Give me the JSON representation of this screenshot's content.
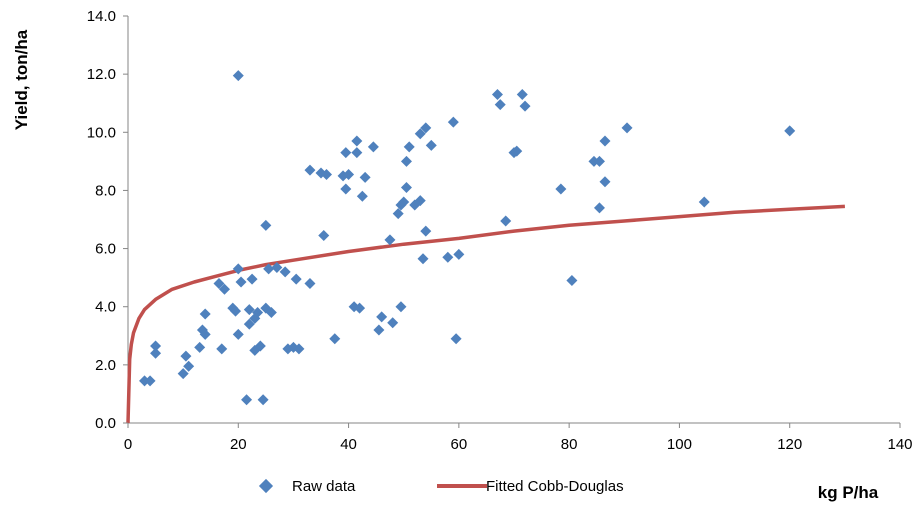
{
  "chart_data": {
    "type": "scatter",
    "xlabel": "kg P/ha",
    "ylabel": "Yield, ton/ha",
    "xlim": [
      0,
      140
    ],
    "ylim": [
      0,
      14
    ],
    "x_ticks": [
      "0",
      "20",
      "40",
      "60",
      "80",
      "100",
      "120",
      "140"
    ],
    "y_ticks": [
      "0.0",
      "2.0",
      "4.0",
      "6.0",
      "8.0",
      "10.0",
      "12.0",
      "14.0"
    ],
    "grid": false,
    "legend_position": "bottom",
    "colors": {
      "raw": "#4f81bd",
      "fit": "#c0504d",
      "axis": "#868686"
    },
    "series": [
      {
        "name": "Raw data",
        "kind": "scatter",
        "points": [
          [
            3,
            1.45
          ],
          [
            4,
            1.45
          ],
          [
            5,
            2.4
          ],
          [
            5,
            2.65
          ],
          [
            10,
            1.7
          ],
          [
            10.5,
            2.3
          ],
          [
            11,
            1.95
          ],
          [
            13,
            2.6
          ],
          [
            13.5,
            3.2
          ],
          [
            14,
            3.05
          ],
          [
            14,
            3.75
          ],
          [
            16.5,
            4.8
          ],
          [
            17,
            2.55
          ],
          [
            17.5,
            4.6
          ],
          [
            19,
            3.95
          ],
          [
            19.5,
            3.85
          ],
          [
            20,
            5.3
          ],
          [
            20,
            11.95
          ],
          [
            20,
            3.05
          ],
          [
            20.5,
            4.85
          ],
          [
            21.5,
            0.8
          ],
          [
            22,
            3.4
          ],
          [
            22,
            3.9
          ],
          [
            22.5,
            4.95
          ],
          [
            23,
            2.5
          ],
          [
            23,
            3.6
          ],
          [
            23.5,
            3.8
          ],
          [
            24,
            2.65
          ],
          [
            24.5,
            0.8
          ],
          [
            25,
            6.8
          ],
          [
            25,
            3.95
          ],
          [
            25.5,
            5.3
          ],
          [
            26,
            3.8
          ],
          [
            27,
            5.35
          ],
          [
            28.5,
            5.2
          ],
          [
            29,
            2.55
          ],
          [
            30,
            2.6
          ],
          [
            30.5,
            4.95
          ],
          [
            31,
            2.55
          ],
          [
            33,
            8.7
          ],
          [
            33,
            4.8
          ],
          [
            35,
            8.6
          ],
          [
            35.5,
            6.45
          ],
          [
            36,
            8.55
          ],
          [
            37.5,
            2.9
          ],
          [
            39,
            8.5
          ],
          [
            39.5,
            8.05
          ],
          [
            39.5,
            9.3
          ],
          [
            40,
            8.55
          ],
          [
            41,
            4
          ],
          [
            41.5,
            9.3
          ],
          [
            41.5,
            9.7
          ],
          [
            42,
            3.95
          ],
          [
            42.5,
            7.8
          ],
          [
            43,
            8.45
          ],
          [
            44.5,
            9.5
          ],
          [
            45.5,
            3.2
          ],
          [
            46,
            3.65
          ],
          [
            47.5,
            6.3
          ],
          [
            48,
            3.45
          ],
          [
            49,
            7.2
          ],
          [
            49.5,
            4
          ],
          [
            49.5,
            7.5
          ],
          [
            50,
            7.6
          ],
          [
            50.5,
            8.1
          ],
          [
            50.5,
            9
          ],
          [
            51,
            9.5
          ],
          [
            52,
            7.5
          ],
          [
            53,
            7.65
          ],
          [
            53,
            9.95
          ],
          [
            53.5,
            5.65
          ],
          [
            54,
            10.15
          ],
          [
            54,
            6.6
          ],
          [
            55,
            9.55
          ],
          [
            58,
            5.7
          ],
          [
            59,
            10.35
          ],
          [
            59.5,
            2.9
          ],
          [
            60,
            5.8
          ],
          [
            67,
            11.3
          ],
          [
            67.5,
            10.95
          ],
          [
            68.5,
            6.95
          ],
          [
            70,
            9.3
          ],
          [
            70.5,
            9.35
          ],
          [
            71.5,
            11.3
          ],
          [
            72,
            10.9
          ],
          [
            78.5,
            8.05
          ],
          [
            80.5,
            4.9
          ],
          [
            84.5,
            9
          ],
          [
            85.5,
            9
          ],
          [
            85.5,
            7.4
          ],
          [
            86.5,
            9.7
          ],
          [
            86.5,
            8.3
          ],
          [
            90.5,
            10.15
          ],
          [
            104.5,
            7.6
          ],
          [
            120,
            10.05
          ]
        ]
      },
      {
        "name": "Fitted Cobb-Douglas",
        "kind": "line",
        "points": [
          [
            0,
            0
          ],
          [
            0.3,
            2.2
          ],
          [
            0.6,
            2.7
          ],
          [
            1,
            3.1
          ],
          [
            2,
            3.6
          ],
          [
            3,
            3.9
          ],
          [
            5,
            4.25
          ],
          [
            8,
            4.6
          ],
          [
            12,
            4.85
          ],
          [
            16,
            5.05
          ],
          [
            20,
            5.25
          ],
          [
            25,
            5.45
          ],
          [
            30,
            5.6
          ],
          [
            40,
            5.9
          ],
          [
            50,
            6.15
          ],
          [
            60,
            6.35
          ],
          [
            70,
            6.6
          ],
          [
            80,
            6.8
          ],
          [
            90,
            6.95
          ],
          [
            100,
            7.1
          ],
          [
            110,
            7.25
          ],
          [
            120,
            7.35
          ],
          [
            130,
            7.45
          ]
        ]
      }
    ]
  }
}
